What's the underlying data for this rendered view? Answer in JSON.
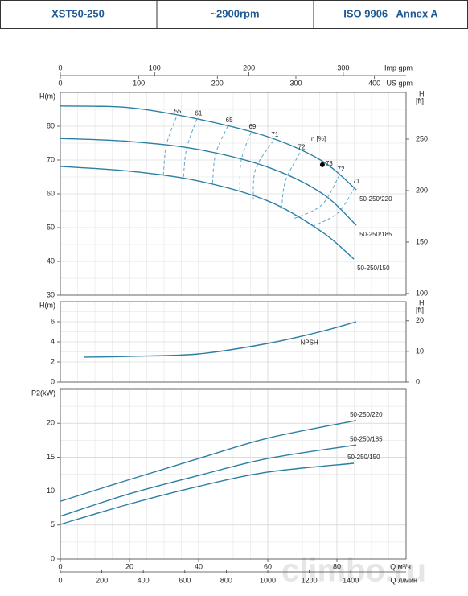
{
  "header": {
    "model": "XST50-250",
    "speed": "~2900rpm",
    "standard": "ISO 9906   Annex A"
  },
  "watermark": "climbo.ru",
  "chart_data": [
    {
      "type": "line",
      "ylabel": "H(m)",
      "y2label": [
        "H",
        "[ft]"
      ],
      "ylim": [
        30,
        90
      ],
      "yticks": [
        30,
        40,
        50,
        60,
        70,
        80
      ],
      "y2lim": [
        98.4,
        295.3
      ],
      "y2ticks": [
        100,
        150,
        200,
        250
      ],
      "top_axes": [
        {
          "label": "Imp gpm",
          "lim": [
            0,
            366.6
          ],
          "ticks": [
            0,
            100,
            200,
            300
          ]
        },
        {
          "label": "US gpm",
          "lim": [
            0,
            440.3
          ],
          "ticks": [
            0,
            100,
            200,
            300,
            400
          ]
        }
      ],
      "grid": true,
      "series": [
        {
          "name": "50-250/220",
          "color": "#2b7fa3",
          "x": [
            0,
            20,
            40,
            60,
            75.6,
            85.6
          ],
          "values": [
            86,
            85.5,
            82.1,
            76.9,
            69.8,
            61.2
          ]
        },
        {
          "name": "50-250/185",
          "color": "#2b7fa3",
          "x": [
            0,
            20,
            40,
            60,
            75.6,
            85.6
          ],
          "values": [
            76.4,
            75.5,
            73.1,
            67.9,
            60.2,
            50.7
          ]
        },
        {
          "name": "50-250/150",
          "color": "#2b7fa3",
          "x": [
            0,
            20,
            40,
            60,
            75.6,
            84.9
          ],
          "values": [
            68.1,
            66.7,
            63.8,
            57.9,
            48.8,
            40.7
          ]
        }
      ],
      "efficiency": {
        "label": "η [%]",
        "color": "#5ba8cc",
        "lines": [
          {
            "name": "55",
            "x": [
              33.5,
              30.7,
              29.8
            ],
            "values": [
              82.6,
              74.5,
              65.5
            ]
          },
          {
            "name": "61",
            "x": [
              39.5,
              36.5,
              35.6
            ],
            "values": [
              82.1,
              73.3,
              64.5
            ]
          },
          {
            "name": "65",
            "x": [
              48.4,
              44.9,
              44.0
            ],
            "values": [
              80.0,
              71.7,
              62.4
            ]
          },
          {
            "name": "69",
            "x": [
              55.1,
              52.3,
              51.9
            ],
            "values": [
              78.1,
              69.8,
              60.2
            ]
          },
          {
            "name": "71",
            "x": [
              61.6,
              56.5,
              55.8
            ],
            "values": [
              75.7,
              67.4,
              58.3
            ]
          },
          {
            "name": "72",
            "x": [
              69.3,
              65.1,
              64.0
            ],
            "values": [
              72.1,
              63.8,
              55.5
            ]
          },
          {
            "name": "72",
            "x": [
              80.7,
              75.6,
              67.4
            ],
            "values": [
              65.5,
              56.7,
              52.6
            ]
          },
          {
            "name": "71",
            "x": [
              85.1,
              80.2,
              72.1
            ],
            "values": [
              61.9,
              54.3,
              50.0
            ]
          }
        ],
        "bep": {
          "name": "73",
          "x": 75.8,
          "value": 68.6
        }
      }
    },
    {
      "type": "line",
      "ylabel": "H(m)",
      "y2label": [
        "H",
        "[ft]"
      ],
      "ylim": [
        0,
        8
      ],
      "yticks": [
        0,
        2,
        4,
        6
      ],
      "y2lim": [
        0,
        26.25
      ],
      "y2ticks": [
        0,
        10,
        20
      ],
      "grid": true,
      "series": [
        {
          "name": "NPSH",
          "color": "#2b7fa3",
          "x": [
            7,
            20,
            40,
            60,
            75.6,
            85.6
          ],
          "values": [
            2.48,
            2.56,
            2.8,
            3.84,
            5.04,
            6.0
          ]
        }
      ]
    },
    {
      "type": "line",
      "ylabel": "P2(kW)",
      "ylim": [
        0,
        25
      ],
      "yticks": [
        0,
        5,
        10,
        15,
        20
      ],
      "xlim": [
        0,
        100
      ],
      "xticks": [
        0,
        20,
        40,
        60,
        80
      ],
      "xlabel": "Q  м³/ч",
      "x2lim": [
        0,
        1666.7
      ],
      "x2ticks": [
        0,
        200,
        400,
        600,
        800,
        1000,
        1200,
        1400
      ],
      "x2label": "Q  л/мин",
      "grid": true,
      "series": [
        {
          "name": "50-250/220",
          "color": "#2b7fa3",
          "x": [
            0,
            20,
            40,
            60,
            85.6
          ],
          "values": [
            8.5,
            11.7,
            14.8,
            17.8,
            20.4
          ]
        },
        {
          "name": "50-250/185",
          "color": "#2b7fa3",
          "x": [
            0,
            20,
            40,
            60,
            85.6
          ],
          "values": [
            6.3,
            9.6,
            12.3,
            14.8,
            16.8
          ]
        },
        {
          "name": "50-250/150",
          "color": "#2b7fa3",
          "x": [
            0,
            20,
            40,
            60,
            84.9
          ],
          "values": [
            5.1,
            8.1,
            10.7,
            12.8,
            14.1
          ]
        }
      ]
    }
  ]
}
